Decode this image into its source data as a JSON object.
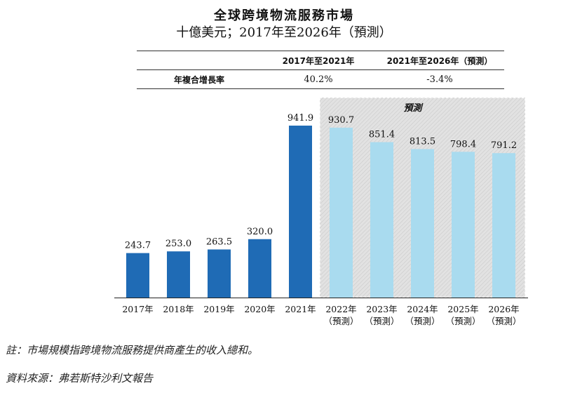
{
  "header": {
    "title": "全球跨境物流服務市場",
    "subtitle": "十億美元；2017年至2026年（預測）"
  },
  "cagr_table": {
    "headers": [
      "",
      "2017年至2021年",
      "2021年至2026年（預測）"
    ],
    "row_label": "年複合增長率",
    "values": [
      "40.2%",
      "-3.4%"
    ]
  },
  "chart_data": {
    "type": "bar",
    "title": "全球跨境物流服務市場",
    "ylabel": "十億美元",
    "xlabel": "",
    "ylim": [
      0,
      1000
    ],
    "categories": [
      "2017年",
      "2018年",
      "2019年",
      "2020年",
      "2021年",
      "2022年",
      "2023年",
      "2024年",
      "2025年",
      "2026年"
    ],
    "category_sublabels": [
      "",
      "",
      "",
      "",
      "",
      "（預測）",
      "（預測）",
      "（預測）",
      "（預測）",
      "（預測）"
    ],
    "values": [
      243.7,
      253.0,
      263.5,
      320.0,
      941.9,
      930.7,
      851.4,
      813.5,
      798.4,
      791.2
    ],
    "value_labels": [
      "243.7",
      "253.0",
      "263.5",
      "320.0",
      "941.9",
      "930.7",
      "851.4",
      "813.5",
      "798.4",
      "791.2"
    ],
    "forecast_from_index": 5,
    "forecast_label": "預測",
    "colors": {
      "historical": "#1f6bb5",
      "forecast": "#a9dbef",
      "forecast_bg": "#e2e2e2"
    }
  },
  "footnotes": {
    "note": "註：市場規模指跨境物流服務提供商產生的收入總和。",
    "source": "資料來源：弗若斯特沙利文報告"
  }
}
